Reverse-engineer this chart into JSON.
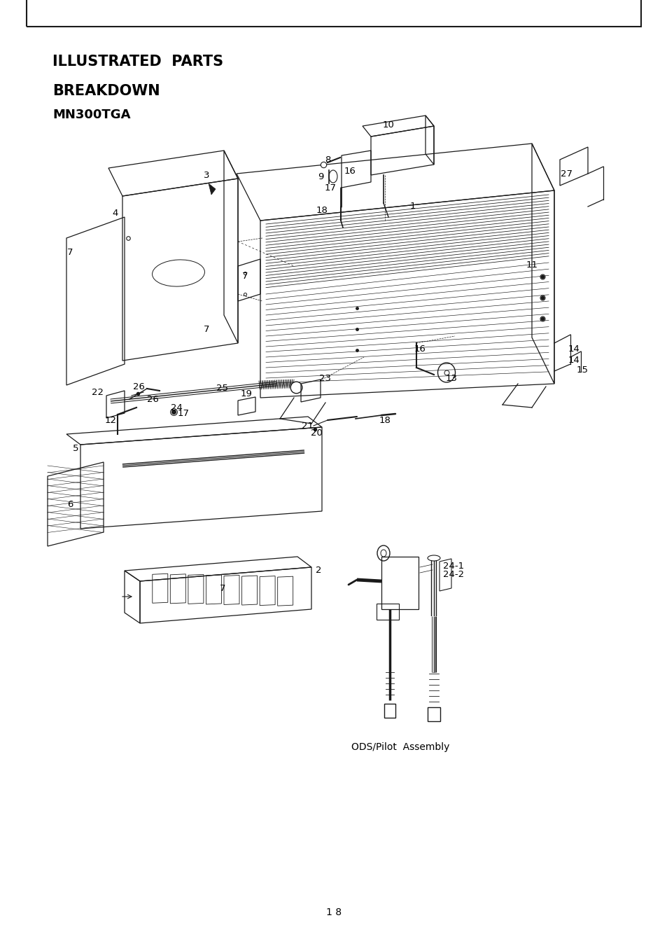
{
  "title_line1": "ILLUSTRATED  PARTS",
  "title_line2": "BREAKDOWN",
  "title_line3": "MN300TGA",
  "page_number": "1 8",
  "border_color": "#000000",
  "bg_color": "#ffffff",
  "text_color": "#000000",
  "caption": "ODS/Pilot  Assembly",
  "title_fontsize": 15,
  "subtitle_fontsize": 13,
  "part_label_fontsize": 9.5
}
